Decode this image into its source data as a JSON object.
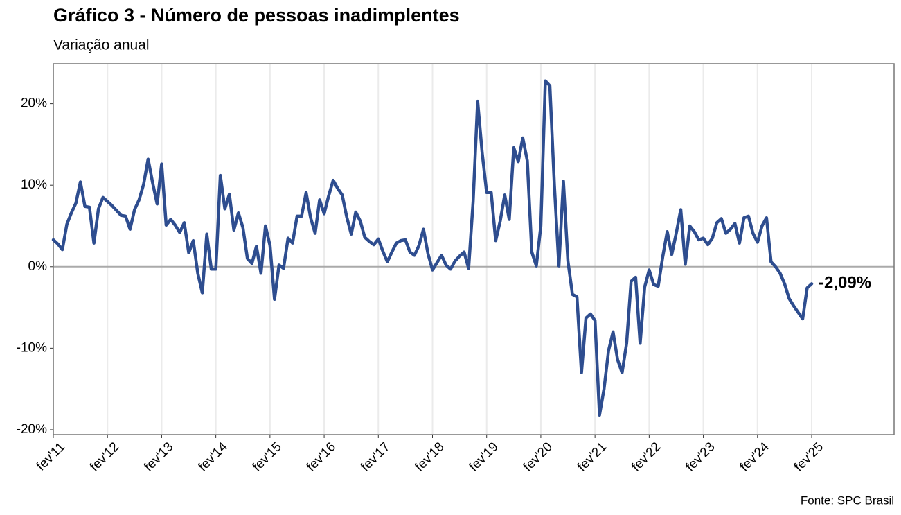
{
  "chart_data": {
    "type": "line",
    "title": "Gráfico 3 - Número de pessoas inadimplentes",
    "subtitle": "Variação anual",
    "source": "Fonte: SPC Brasil",
    "color": "#2e4d8f",
    "categories": [
      "fev'11",
      null,
      null,
      null,
      null,
      null,
      null,
      null,
      null,
      null,
      null,
      null,
      "fev'12",
      null,
      null,
      null,
      null,
      null,
      null,
      null,
      null,
      null,
      null,
      null,
      "fev'13",
      null,
      null,
      null,
      null,
      null,
      null,
      null,
      null,
      null,
      null,
      null,
      "fev'14",
      null,
      null,
      null,
      null,
      null,
      null,
      null,
      null,
      null,
      null,
      null,
      "fev'15",
      null,
      null,
      null,
      null,
      null,
      null,
      null,
      null,
      null,
      null,
      null,
      "fev'16",
      null,
      null,
      null,
      null,
      null,
      null,
      null,
      null,
      null,
      null,
      null,
      "fev'17",
      null,
      null,
      null,
      null,
      null,
      null,
      null,
      null,
      null,
      null,
      null,
      "fev'18",
      null,
      null,
      null,
      null,
      null,
      null,
      null,
      null,
      null,
      null,
      null,
      "fev'19",
      null,
      null,
      null,
      null,
      null,
      null,
      null,
      null,
      null,
      null,
      null,
      "fev'20",
      null,
      null,
      null,
      null,
      null,
      null,
      null,
      null,
      null,
      null,
      null,
      "fev'21",
      null,
      null,
      null,
      null,
      null,
      null,
      null,
      null,
      null,
      null,
      null,
      "fev'22",
      null,
      null,
      null,
      null,
      null,
      null,
      null,
      null,
      null,
      null,
      null,
      "fev'23",
      null,
      null,
      null,
      null,
      null,
      null,
      null,
      null,
      null,
      null,
      null,
      "fev'24",
      null,
      null,
      null,
      null,
      null,
      null,
      null,
      null,
      null,
      null,
      null,
      "fev'25"
    ],
    "values": [
      3.3,
      2.8,
      2.1,
      5.2,
      6.6,
      7.8,
      10.4,
      7.4,
      7.3,
      2.9,
      7.1,
      8.5,
      8.0,
      7.5,
      6.9,
      6.3,
      6.2,
      4.6,
      7.0,
      8.2,
      10.1,
      13.2,
      10.3,
      7.7,
      12.6,
      5.1,
      5.8,
      5.1,
      4.2,
      5.4,
      1.7,
      3.2,
      -0.8,
      -3.2,
      4.0,
      -0.3,
      -0.3,
      11.2,
      7.1,
      8.9,
      4.5,
      6.6,
      4.8,
      1.0,
      0.4,
      2.5,
      -0.8,
      5.0,
      2.6,
      -4.0,
      0.2,
      -0.2,
      3.5,
      2.9,
      6.2,
      6.2,
      9.1,
      6.0,
      4.1,
      8.2,
      6.5,
      8.7,
      10.6,
      9.6,
      8.8,
      6.1,
      4.0,
      6.7,
      5.6,
      3.6,
      3.1,
      2.7,
      3.4,
      1.9,
      0.6,
      1.8,
      2.9,
      3.2,
      3.3,
      1.8,
      1.4,
      2.6,
      4.6,
      1.6,
      -0.4,
      0.5,
      1.4,
      0.2,
      -0.3,
      0.7,
      1.3,
      1.8,
      -0.2,
      8.0,
      20.3,
      14.0,
      9.1,
      9.1,
      3.2,
      5.6,
      8.8,
      5.8,
      14.6,
      12.9,
      15.8,
      13.0,
      1.8,
      0.1,
      5.0,
      22.8,
      22.2,
      10.0,
      0.1,
      10.5,
      0.7,
      -3.4,
      -3.7,
      -13.0,
      -6.3,
      -5.8,
      -6.6,
      -18.2,
      -15.0,
      -10.3,
      -8.0,
      -11.4,
      -13.0,
      -9.4,
      -1.8,
      -1.3,
      -9.4,
      -2.5,
      -0.4,
      -2.2,
      -2.4,
      1.2,
      4.3,
      1.5,
      4.1,
      7.0,
      0.3,
      5.0,
      4.3,
      3.3,
      3.5,
      2.7,
      3.5,
      5.4,
      5.9,
      4.1,
      4.6,
      5.3,
      2.9,
      6.0,
      6.2,
      4.1,
      3.0,
      5.0,
      6.0,
      0.6,
      0.0,
      -0.8,
      -2.1,
      -3.9,
      -4.8,
      -5.6,
      -6.4,
      -2.6,
      -2.09
    ],
    "value_labels": [
      null,
      null,
      null,
      null,
      null,
      null,
      null,
      null,
      null,
      null,
      null,
      null,
      null,
      null,
      null,
      null,
      null,
      null,
      null,
      null,
      null,
      null,
      null,
      null,
      null,
      null,
      null,
      null,
      null,
      null,
      null,
      null,
      null,
      null,
      null,
      null,
      null,
      null,
      null,
      null,
      null,
      null,
      null,
      null,
      null,
      null,
      null,
      null,
      null,
      null,
      null,
      null,
      null,
      null,
      null,
      null,
      null,
      null,
      null,
      null,
      null,
      null,
      null,
      null,
      null,
      null,
      null,
      null,
      null,
      null,
      null,
      null,
      null,
      null,
      null,
      null,
      null,
      null,
      null,
      null,
      null,
      null,
      null,
      null,
      null,
      null,
      null,
      null,
      null,
      null,
      null,
      null,
      null,
      null,
      null,
      null,
      null,
      null,
      null,
      null,
      null,
      null,
      null,
      null,
      null,
      null,
      null,
      null,
      null,
      null,
      null,
      null,
      null,
      null,
      null,
      null,
      null,
      null,
      null,
      null,
      null,
      null,
      null,
      null,
      null,
      null,
      null,
      null,
      null,
      null,
      null,
      null,
      null,
      null,
      null,
      null,
      null,
      null,
      null,
      null,
      null,
      null,
      null,
      null,
      null,
      null,
      null,
      null,
      null,
      null,
      null,
      null,
      null,
      null,
      null,
      null,
      null,
      null,
      null,
      null,
      null,
      null,
      null,
      null,
      null,
      null,
      null,
      null,
      "-2,09%"
    ],
    "ylim": [
      -20.6,
      24.9
    ],
    "yticks": [
      {
        "value": -20,
        "label": "-20%"
      },
      {
        "value": -10,
        "label": "-10%"
      },
      {
        "value": 0,
        "label": "0%"
      },
      {
        "value": 10,
        "label": "10%"
      },
      {
        "value": 20,
        "label": "20%"
      }
    ],
    "grid": true
  }
}
